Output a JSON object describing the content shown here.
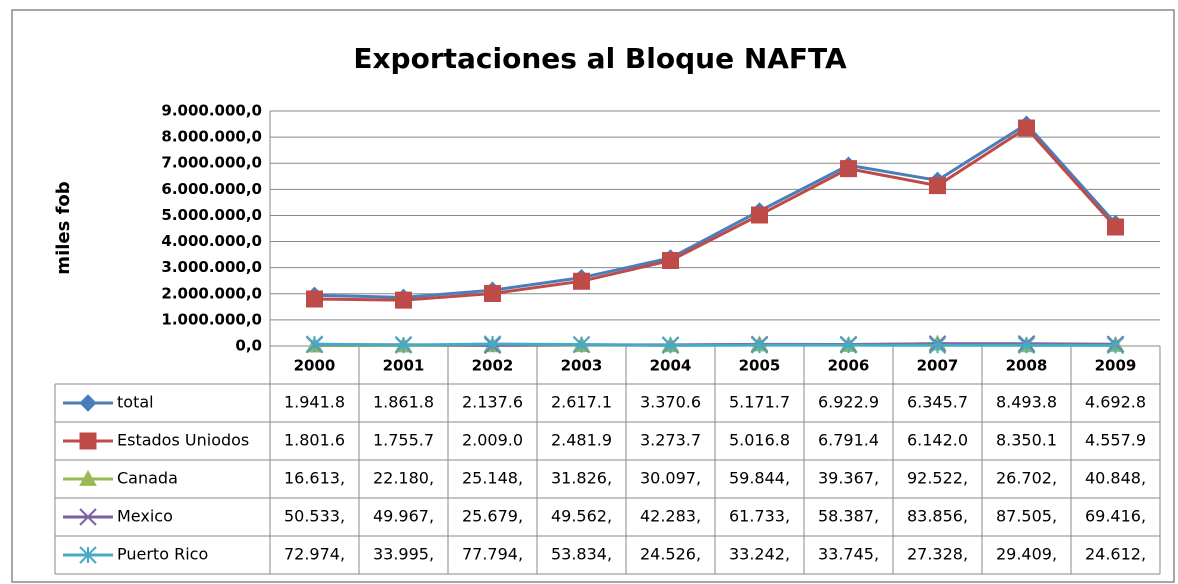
{
  "chart_data": {
    "type": "line",
    "title": "Exportaciones al Bloque NAFTA",
    "y_label": "miles fob",
    "categories": [
      "2000",
      "2001",
      "2002",
      "2003",
      "2004",
      "2005",
      "2006",
      "2007",
      "2008",
      "2009"
    ],
    "ylim": [
      0,
      9000000
    ],
    "yticks": [
      {
        "value": 0,
        "label": "0,0"
      },
      {
        "value": 1000000,
        "label": "1.000.000,0"
      },
      {
        "value": 2000000,
        "label": "2.000.000,0"
      },
      {
        "value": 3000000,
        "label": "3.000.000,0"
      },
      {
        "value": 4000000,
        "label": "4.000.000,0"
      },
      {
        "value": 5000000,
        "label": "5.000.000,0"
      },
      {
        "value": 6000000,
        "label": "6.000.000,0"
      },
      {
        "value": 7000000,
        "label": "7.000.000,0"
      },
      {
        "value": 8000000,
        "label": "8.000.000,0"
      },
      {
        "value": 9000000,
        "label": "9.000.000,0"
      }
    ],
    "grid": true,
    "series": [
      {
        "name": "total",
        "color": "#4a7ebb",
        "marker": "diamond",
        "values": [
          1941800,
          1861800,
          2137600,
          2617100,
          3370600,
          5171700,
          6922900,
          6345700,
          8493800,
          4692800
        ],
        "value_labels": [
          "1.941.8",
          "1.861.8",
          "2.137.6",
          "2.617.1",
          "3.370.6",
          "5.171.7",
          "6.922.9",
          "6.345.7",
          "8.493.8",
          "4.692.8"
        ]
      },
      {
        "name": "Estados Uniodos",
        "color": "#be4b48",
        "marker": "square",
        "values": [
          1801600,
          1755700,
          2009000,
          2481900,
          3273700,
          5016800,
          6791400,
          6142000,
          8350100,
          4557900
        ],
        "value_labels": [
          "1.801.6",
          "1.755.7",
          "2.009.0",
          "2.481.9",
          "3.273.7",
          "5.016.8",
          "6.791.4",
          "6.142.0",
          "8.350.1",
          "4.557.9"
        ]
      },
      {
        "name": "Canada",
        "color": "#98b954",
        "marker": "triangle",
        "values": [
          16613,
          22180,
          25148,
          31826,
          30097,
          59844,
          39367,
          92522,
          26702,
          40848
        ],
        "value_labels": [
          "16.613,",
          "22.180,",
          "25.148,",
          "31.826,",
          "30.097,",
          "59.844,",
          "39.367,",
          "92.522,",
          "26.702,",
          "40.848,"
        ]
      },
      {
        "name": "Mexico",
        "color": "#7d60a0",
        "marker": "x",
        "values": [
          50533,
          49967,
          25679,
          49562,
          42283,
          61733,
          58387,
          83856,
          87505,
          69416
        ],
        "value_labels": [
          "50.533,",
          "49.967,",
          "25.679,",
          "49.562,",
          "42.283,",
          "61.733,",
          "58.387,",
          "83.856,",
          "87.505,",
          "69.416,"
        ]
      },
      {
        "name": "Puerto Rico",
        "color": "#46aac5",
        "marker": "star",
        "values": [
          72974,
          33995,
          77794,
          53834,
          24526,
          33242,
          33745,
          27328,
          29409,
          24612
        ],
        "value_labels": [
          "72.974,",
          "33.995,",
          "77.794,",
          "53.834,",
          "24.526,",
          "33.242,",
          "33.745,",
          "27.328,",
          "29.409,",
          "24.612,"
        ]
      }
    ]
  }
}
